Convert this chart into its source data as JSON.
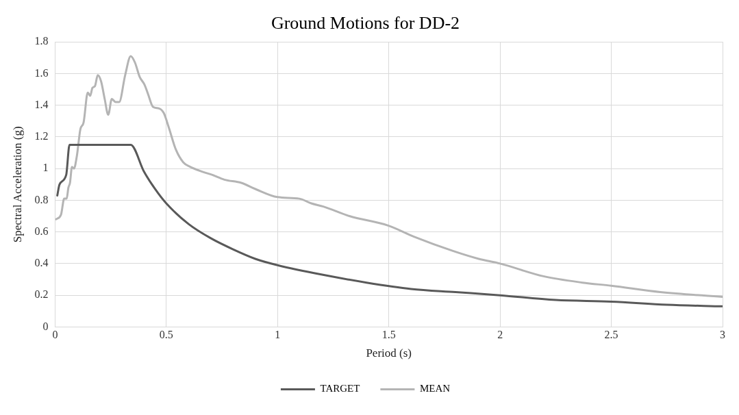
{
  "chart_data": {
    "type": "line",
    "title": "Ground Motions for DD-2",
    "xlabel": "Period (s)",
    "ylabel": "Spectral Acceleration (g)",
    "xlim": [
      0,
      3
    ],
    "xticks": [
      0,
      0.5,
      1,
      1.5,
      2,
      2.5,
      3
    ],
    "ylim": [
      0,
      1.8
    ],
    "yticks": [
      0,
      0.2,
      0.4,
      0.6,
      0.8,
      1,
      1.2,
      1.4,
      1.6,
      1.8
    ],
    "grid": true,
    "legend": "bottom",
    "marker": "none",
    "line_style": "solid",
    "series": [
      {
        "name": "TARGET",
        "color": "#595959",
        "x": [
          0.01,
          0.02,
          0.05,
          0.065,
          0.34,
          0.4,
          0.45,
          0.5,
          0.6,
          0.7,
          0.8,
          0.9,
          1,
          1.2,
          1.4,
          1.6,
          1.8,
          2,
          2.25,
          2.5,
          2.75,
          3
        ],
        "values": [
          0.83,
          0.9,
          0.96,
          1.15,
          1.15,
          0.98,
          0.87,
          0.78,
          0.65,
          0.56,
          0.49,
          0.43,
          0.39,
          0.33,
          0.28,
          0.24,
          0.22,
          0.2,
          0.17,
          0.16,
          0.14,
          0.13
        ]
      },
      {
        "name": "MEAN",
        "color": "#b4b4b4",
        "x": [
          0.005,
          0.027,
          0.041,
          0.052,
          0.06,
          0.067,
          0.076,
          0.085,
          0.098,
          0.114,
          0.128,
          0.147,
          0.158,
          0.168,
          0.179,
          0.192,
          0.207,
          0.223,
          0.239,
          0.255,
          0.272,
          0.288,
          0.315,
          0.34,
          0.359,
          0.38,
          0.402,
          0.418,
          0.44,
          0.467,
          0.489,
          0.511,
          0.543,
          0.576,
          0.609,
          0.663,
          0.707,
          0.761,
          0.837,
          0.902,
          1.0,
          1.098,
          1.152,
          1.206,
          1.323,
          1.497,
          1.613,
          1.788,
          1.904,
          2.0,
          2.195,
          2.37,
          2.5,
          2.72,
          3.0
        ],
        "values": [
          0.68,
          0.71,
          0.81,
          0.81,
          0.88,
          0.91,
          1.01,
          1.0,
          1.08,
          1.25,
          1.29,
          1.48,
          1.46,
          1.51,
          1.52,
          1.59,
          1.55,
          1.44,
          1.34,
          1.44,
          1.42,
          1.42,
          1.59,
          1.71,
          1.67,
          1.58,
          1.53,
          1.47,
          1.39,
          1.38,
          1.35,
          1.26,
          1.12,
          1.04,
          1.01,
          0.98,
          0.96,
          0.93,
          0.91,
          0.87,
          0.82,
          0.81,
          0.78,
          0.76,
          0.7,
          0.64,
          0.57,
          0.48,
          0.43,
          0.4,
          0.32,
          0.28,
          0.26,
          0.22,
          0.19
        ]
      }
    ]
  }
}
